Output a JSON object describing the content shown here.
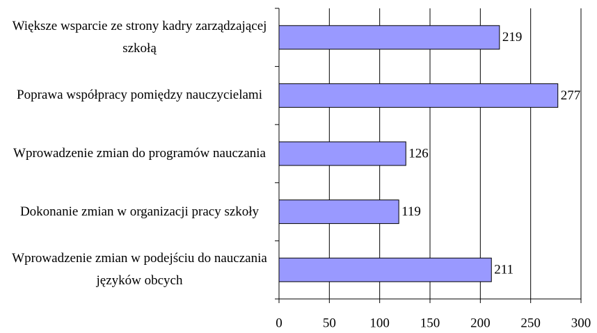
{
  "chart_data": {
    "type": "hbar",
    "categories": [
      "Większe wsparcie ze strony kadry zarządzającej szkołą",
      "Poprawa współpracy pomiędzy nauczycielami",
      "Wprowadzenie zmian do programów nauczania",
      "Dokonanie zmian w organizacji pracy szkoły",
      "Wprowadzenie zmian w podejściu do nauczania języków obcych"
    ],
    "values": [
      219,
      277,
      126,
      119,
      211
    ],
    "color": "#9999ff",
    "xlim": [
      0,
      300
    ],
    "xticks": [
      0,
      50,
      100,
      150,
      200,
      250,
      300
    ],
    "grid": true
  }
}
